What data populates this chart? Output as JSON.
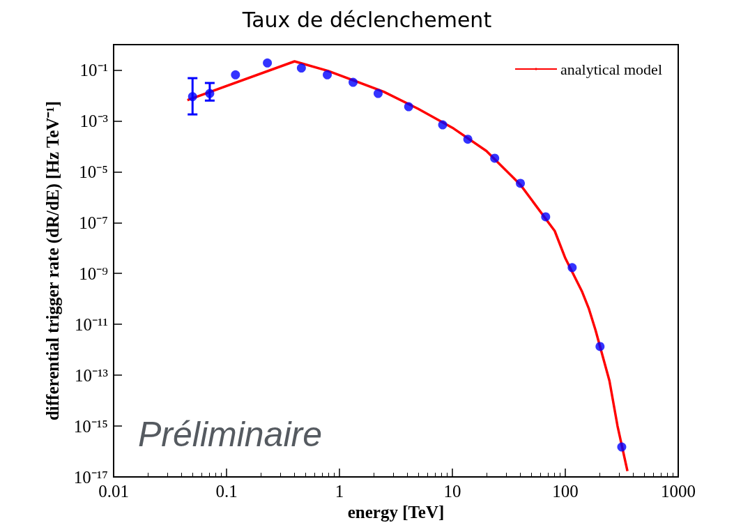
{
  "chart_data": {
    "type": "scatter",
    "title": "Taux de déclenchement",
    "xlabel": "energy [TeV]",
    "ylabel": "differential trigger rate (dR/dE) [Hz TeV⁻¹]",
    "annotations": [
      "Préliminaire"
    ],
    "log": "xy",
    "xlim": [
      0.01,
      1000
    ],
    "xticks": [
      0.01,
      0.1,
      1,
      10,
      100,
      1000
    ],
    "ylim": [
      1e-17,
      1
    ],
    "yticks": [
      {
        "value": 1e-17,
        "label": "10⁻¹⁷"
      },
      {
        "value": 1e-15,
        "label": "10⁻¹⁵"
      },
      {
        "value": 1e-13,
        "label": "10⁻¹³"
      },
      {
        "value": 1e-11,
        "label": "10⁻¹¹"
      },
      {
        "value": 1e-09,
        "label": "10⁻⁹"
      },
      {
        "value": 1e-07,
        "label": "10⁻⁷"
      },
      {
        "value": 1e-05,
        "label": "10⁻⁵"
      },
      {
        "value": 0.001,
        "label": "10⁻³"
      },
      {
        "value": 0.1,
        "label": "10⁻¹"
      }
    ],
    "grid": false,
    "legend": "top right",
    "series": [
      {
        "color": "#0000ff",
        "marker": "circle",
        "x": [
          0.05,
          0.071,
          0.12,
          0.23,
          0.46,
          0.78,
          1.32,
          2.2,
          4.1,
          8.2,
          13.7,
          23.7,
          40,
          67,
          115,
          203,
          316
        ],
        "values": [
          0.009,
          0.012,
          0.065,
          0.19,
          0.12,
          0.065,
          0.033,
          0.012,
          0.0036,
          0.0007,
          0.00019,
          3.4e-05,
          3.5e-06,
          1.7e-07,
          1.7e-09,
          1.35e-12,
          1.5e-16
        ],
        "errors": [
          [
            0.0018,
            0.048
          ],
          [
            0.0063,
            0.031
          ],
          null,
          null,
          null,
          null,
          null,
          null,
          null,
          null,
          null,
          null,
          null,
          null,
          null,
          null,
          null
        ]
      },
      {
        "type": "line",
        "name": "analytical model",
        "color": "#ff0000",
        "marker": "none",
        "line_style": "solid",
        "x": [
          0.045,
          0.4,
          0.79,
          2.47,
          4.97,
          10,
          20,
          40,
          80.6,
          100,
          141,
          162,
          185,
          246,
          290,
          355
        ],
        "values": [
          0.0066,
          0.22,
          0.093,
          0.014,
          0.003,
          0.00054,
          6.6e-05,
          3.1e-06,
          4.7e-08,
          4e-09,
          1.9e-10,
          4e-11,
          6e-12,
          6e-14,
          1e-15,
          1.7e-17
        ]
      }
    ]
  }
}
